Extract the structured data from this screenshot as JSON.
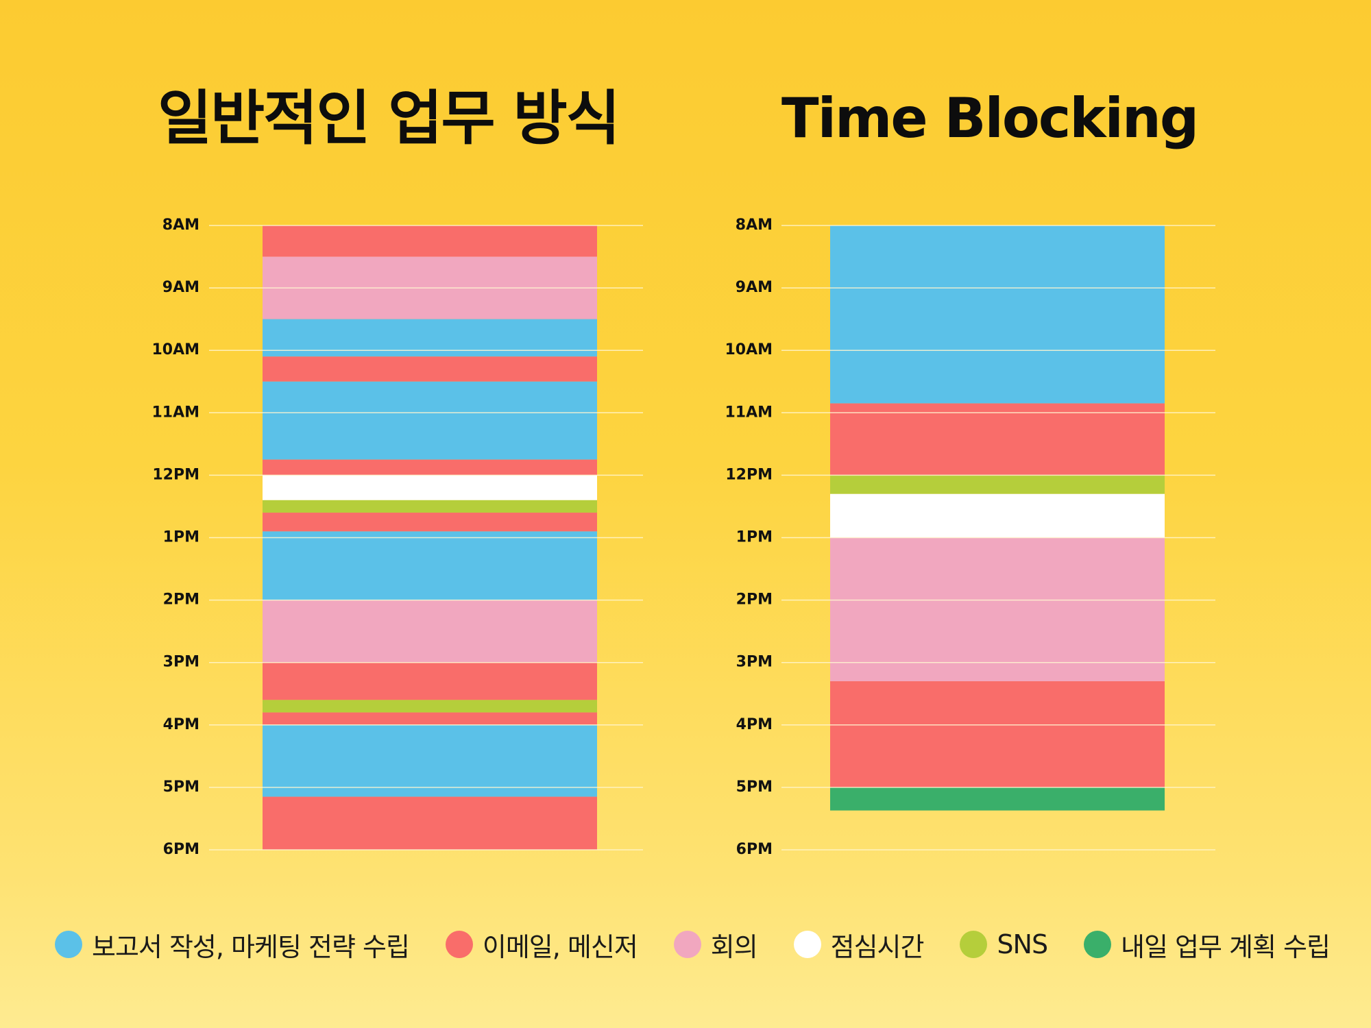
{
  "chart_data": [
    {
      "type": "bar",
      "title": "일반적인 업무 방식",
      "y_ticks": [
        "8AM",
        "9AM",
        "10AM",
        "11AM",
        "12PM",
        "1PM",
        "2PM",
        "3PM",
        "4PM",
        "5PM",
        "6PM"
      ],
      "ylim": [
        8,
        18
      ],
      "grid": true,
      "blocks": [
        {
          "category": "email",
          "start": 8.0,
          "end": 8.5
        },
        {
          "category": "meeting",
          "start": 8.5,
          "end": 9.5
        },
        {
          "category": "report",
          "start": 9.5,
          "end": 10.1
        },
        {
          "category": "email",
          "start": 10.1,
          "end": 10.5
        },
        {
          "category": "report",
          "start": 10.5,
          "end": 11.75
        },
        {
          "category": "email",
          "start": 11.75,
          "end": 12.0
        },
        {
          "category": "lunch",
          "start": 12.0,
          "end": 12.4
        },
        {
          "category": "sns",
          "start": 12.4,
          "end": 12.6
        },
        {
          "category": "email",
          "start": 12.6,
          "end": 12.9
        },
        {
          "category": "report",
          "start": 12.9,
          "end": 14.0
        },
        {
          "category": "meeting",
          "start": 14.0,
          "end": 15.0
        },
        {
          "category": "email",
          "start": 15.0,
          "end": 15.6
        },
        {
          "category": "sns",
          "start": 15.6,
          "end": 15.8
        },
        {
          "category": "email",
          "start": 15.8,
          "end": 16.0
        },
        {
          "category": "report",
          "start": 16.0,
          "end": 17.15
        },
        {
          "category": "email",
          "start": 17.15,
          "end": 18.0
        }
      ]
    },
    {
      "type": "bar",
      "title": "Time Blocking",
      "y_ticks": [
        "8AM",
        "9AM",
        "10AM",
        "11AM",
        "12PM",
        "1PM",
        "2PM",
        "3PM",
        "4PM",
        "5PM",
        "6PM"
      ],
      "ylim": [
        8,
        18
      ],
      "grid": true,
      "blocks": [
        {
          "category": "report",
          "start": 8.0,
          "end": 10.85
        },
        {
          "category": "email",
          "start": 10.85,
          "end": 12.0
        },
        {
          "category": "sns",
          "start": 12.0,
          "end": 12.3
        },
        {
          "category": "lunch",
          "start": 12.3,
          "end": 13.0
        },
        {
          "category": "meeting",
          "start": 13.0,
          "end": 15.3
        },
        {
          "category": "email",
          "start": 15.3,
          "end": 17.0
        },
        {
          "category": "plan",
          "start": 17.0,
          "end": 17.37
        }
      ]
    }
  ],
  "legend": [
    {
      "key": "report",
      "label": "보고서 작성, 마케팅 전략 수립",
      "color": "#5BC1E8"
    },
    {
      "key": "email",
      "label": "이메일, 메신저",
      "color": "#F96D6A"
    },
    {
      "key": "meeting",
      "label": "회의",
      "color": "#F1A7BF"
    },
    {
      "key": "lunch",
      "label": "점심시간",
      "color": "#FFFFFF"
    },
    {
      "key": "sns",
      "label": "SNS",
      "color": "#B5CE3B"
    },
    {
      "key": "plan",
      "label": "내일 업무 계획 수립",
      "color": "#3AAF6A"
    }
  ]
}
